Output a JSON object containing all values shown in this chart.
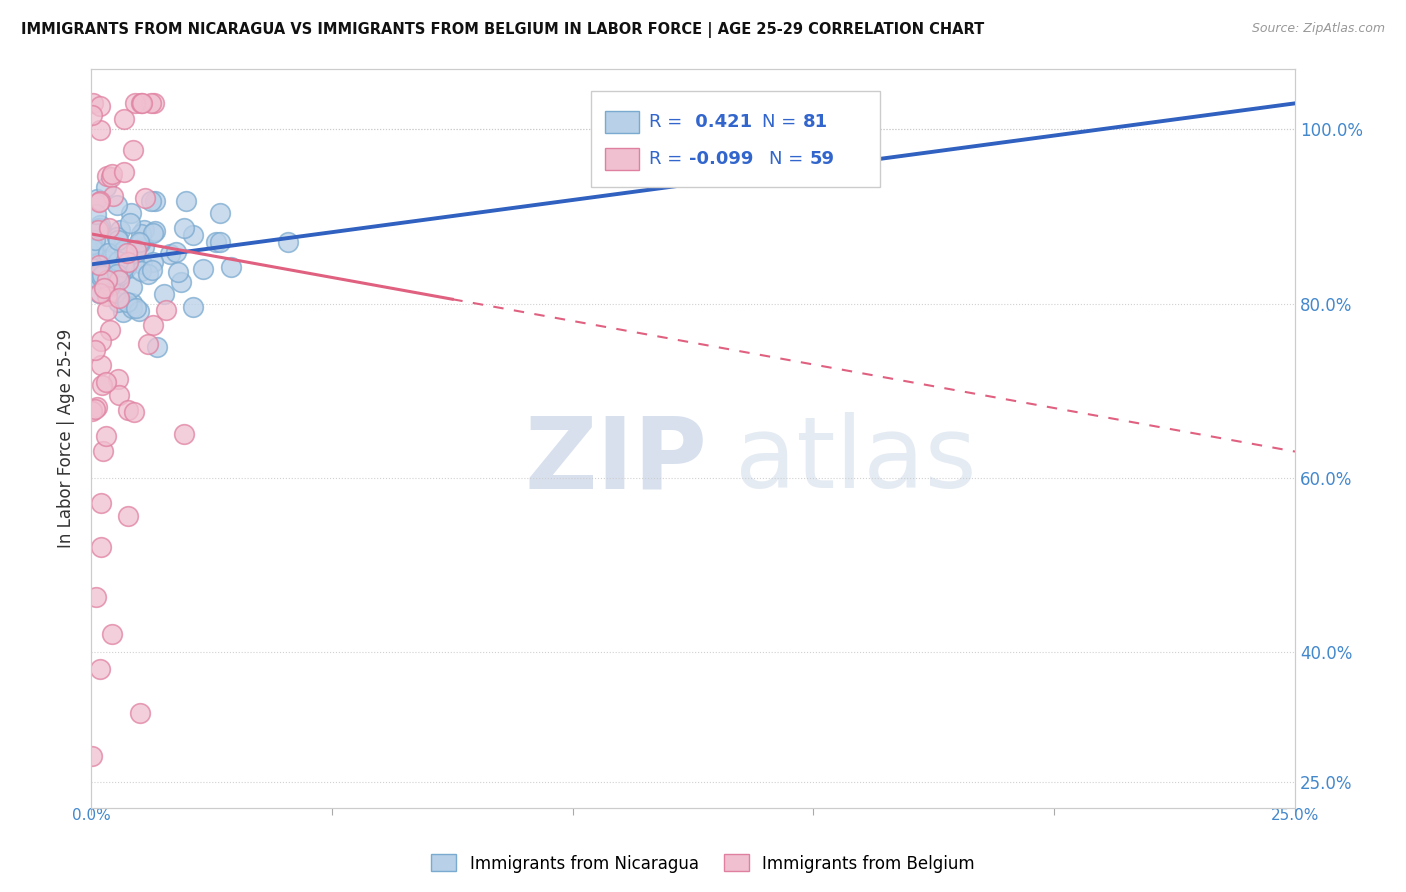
{
  "title": "IMMIGRANTS FROM NICARAGUA VS IMMIGRANTS FROM BELGIUM IN LABOR FORCE | AGE 25-29 CORRELATION CHART",
  "source": "Source: ZipAtlas.com",
  "ylabel": "In Labor Force | Age 25-29",
  "xlim": [
    0.0,
    25.0
  ],
  "ylim": [
    22.0,
    107.0
  ],
  "nicaragua_color": "#b8d0e8",
  "nicaragua_edge": "#7aaad0",
  "belgium_color": "#f0c0d0",
  "belgium_edge": "#e080a0",
  "trend_nicaragua_color": "#3060c0",
  "trend_belgium_color": "#e06080",
  "legend_R_nic": "0.421",
  "legend_N_nic": "81",
  "legend_R_bel": "-0.099",
  "legend_N_bel": "59",
  "watermark_zip": "ZIP",
  "watermark_atlas": "atlas",
  "yticks": [
    25,
    40,
    60,
    80,
    100
  ],
  "nicaragua_color_fill": "#c8d8f0",
  "belgium_color_fill": "#f8d0dc"
}
